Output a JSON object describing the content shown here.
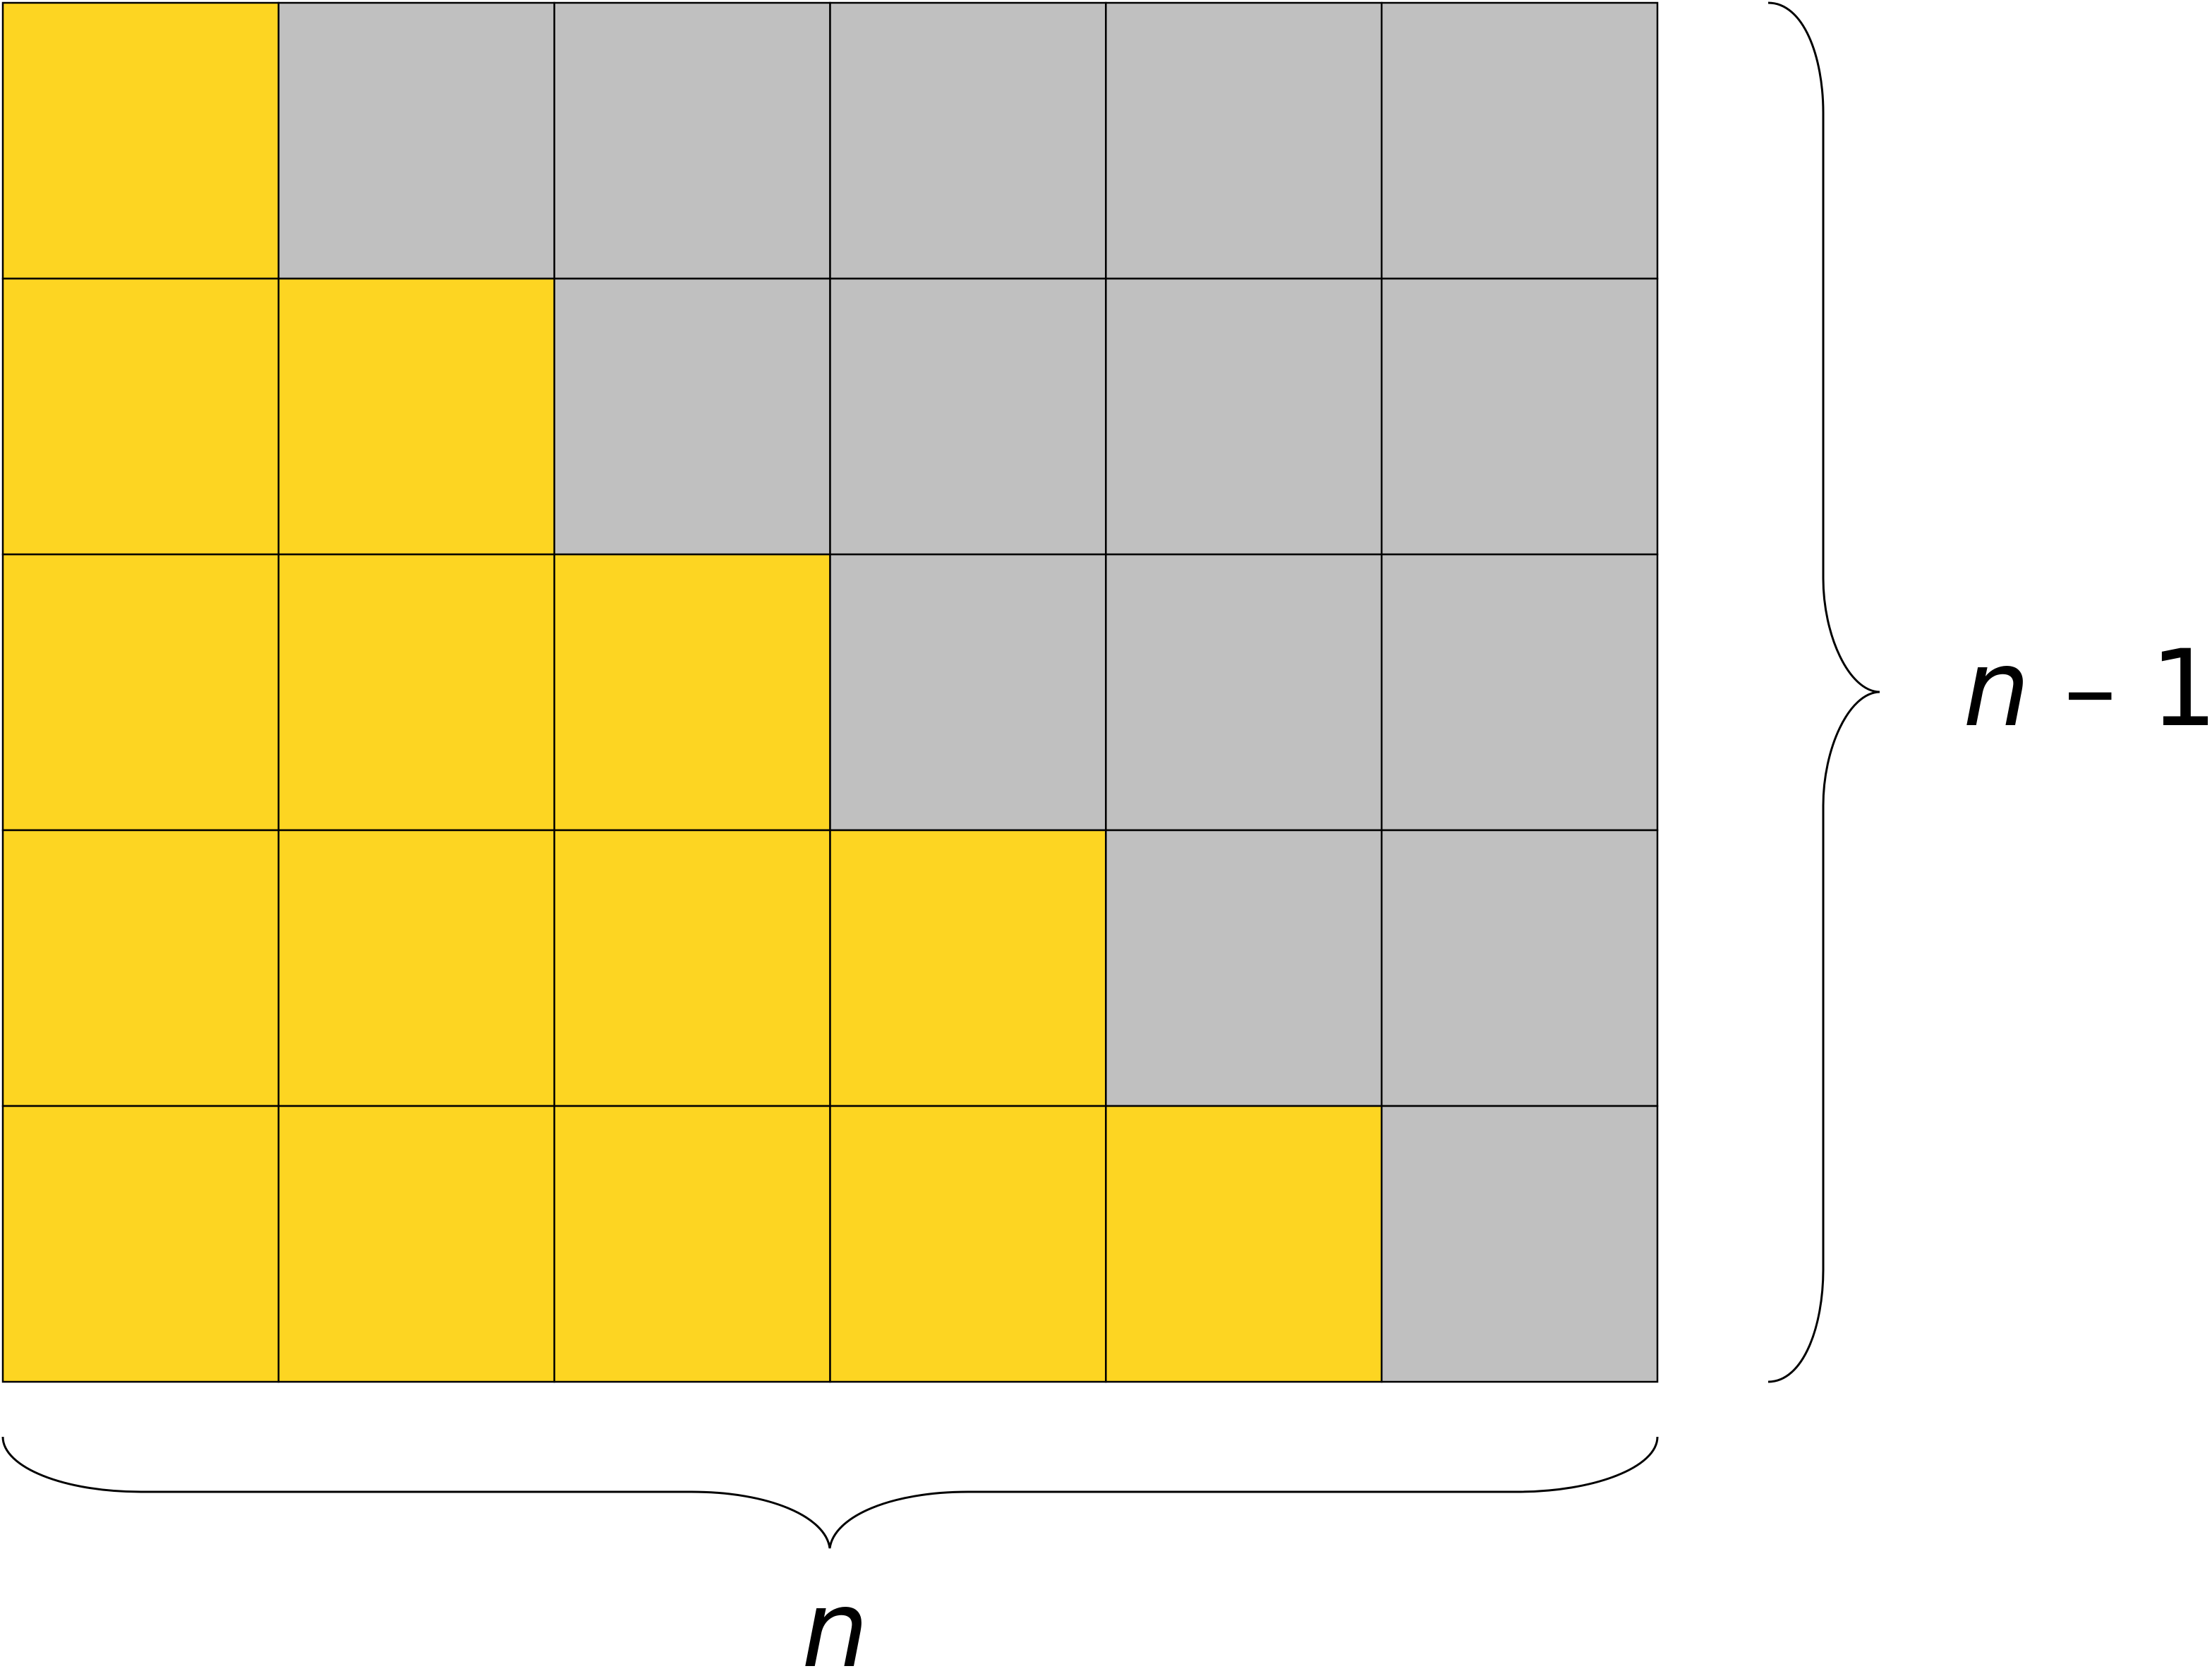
{
  "grid": {
    "columns": 6,
    "rows": 5,
    "filled_cells_per_row": [
      1,
      2,
      3,
      4,
      5
    ],
    "filled_color": "#FDD522",
    "empty_color": "#C0C0C0",
    "line_color": "#000000"
  },
  "labels": {
    "width_label": "n",
    "height_var": "n",
    "height_rest": " – 1"
  }
}
